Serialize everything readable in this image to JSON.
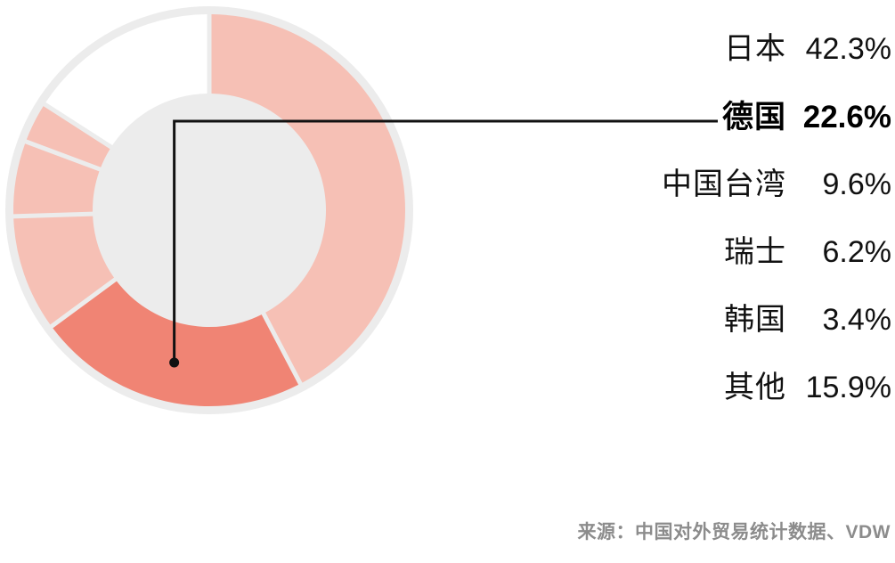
{
  "chart_data": {
    "type": "pie",
    "subtype": "donut",
    "start_angle_deg": 0,
    "direction": "clockwise",
    "legend_position": "right",
    "ring_background": "#ececec",
    "base_color": "#f6c0b5",
    "highlight_color": "#f08474",
    "text_color": "#111111",
    "source_text_color": "#8c8c8c",
    "categories": [
      "日本",
      "德国",
      "中国台湾",
      "瑞士",
      "韩国",
      "其他"
    ],
    "values": [
      42.3,
      22.6,
      9.6,
      6.2,
      3.4,
      15.9
    ],
    "series": [
      {
        "label": "日本",
        "value": 42.3,
        "display": "42.3%",
        "color": "#f6c0b5",
        "emphasis": false,
        "callout": false
      },
      {
        "label": "德国",
        "value": 22.6,
        "display": "22.6%",
        "color": "#f08474",
        "emphasis": true,
        "callout": true
      },
      {
        "label": "中国台湾",
        "value": 9.6,
        "display": "9.6%",
        "color": "#f6c0b5",
        "emphasis": false,
        "callout": false
      },
      {
        "label": "瑞士",
        "value": 6.2,
        "display": "6.2%",
        "color": "#f6c0b5",
        "emphasis": false,
        "callout": false
      },
      {
        "label": "韩国",
        "value": 3.4,
        "display": "3.4%",
        "color": "#f6c0b5",
        "emphasis": false,
        "callout": false
      },
      {
        "label": "其他",
        "value": 15.9,
        "display": "15.9%",
        "color": "#ffffff",
        "emphasis": false,
        "callout": false
      }
    ],
    "source_note": "来源：中国对外贸易统计数据、VDW"
  }
}
